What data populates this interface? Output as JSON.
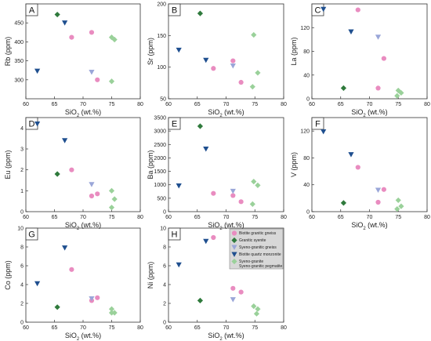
{
  "colors": {
    "biotite_granitic_gneiss": "#e98cc0",
    "granitic_syenite": "#2f7a3c",
    "syeno_granitic_gneiss": "#9aa6d8",
    "biotite_quartz_monzonite": "#1f4f8f",
    "syeno_granite_pegmatite": "#9ad19a"
  },
  "legend": {
    "entries": [
      {
        "key": "biotite_granitic_gneiss",
        "label": "Biotite granitic gneiss",
        "shape": "circle"
      },
      {
        "key": "granitic_syenite",
        "label": "Granitic syenite",
        "shape": "diamond"
      },
      {
        "key": "syeno_granitic_gneiss",
        "label": "Syeno-granitic gneiss",
        "shape": "triangle-down"
      },
      {
        "key": "biotite_quartz_monzonite",
        "label": "Biotite quartz monzonite",
        "shape": "triangle-down"
      },
      {
        "key": "syeno_granite_pegmatite",
        "label": "Syeno-granite\nSyeno-granitic pegmatite",
        "shape": "diamond"
      }
    ]
  },
  "chart_data": [
    {
      "panel": "A",
      "type": "scatter",
      "xlabel": "SiO2 (wt.%)",
      "ylabel": "Rb (ppm)",
      "xlim": [
        60,
        80
      ],
      "ylim": [
        250,
        500
      ],
      "xticks": [
        60,
        65,
        70,
        75,
        80
      ],
      "yticks": [
        300,
        350,
        400,
        450
      ],
      "series": [
        {
          "key": "biotite_granitic_gneiss",
          "x": [
            68,
            71.5,
            72.5
          ],
          "y": [
            412,
            425,
            300
          ]
        },
        {
          "key": "granitic_syenite",
          "x": [
            65.5
          ],
          "y": [
            472
          ]
        },
        {
          "key": "syeno_granitic_gneiss",
          "x": [
            71.5
          ],
          "y": [
            320
          ]
        },
        {
          "key": "biotite_quartz_monzonite",
          "x": [
            62,
            66.8
          ],
          "y": [
            323,
            450
          ]
        },
        {
          "key": "syeno_granite_pegmatite",
          "x": [
            75,
            75.5,
            75
          ],
          "y": [
            412,
            406,
            296
          ]
        }
      ]
    },
    {
      "panel": "B",
      "type": "scatter",
      "xlabel": "SiO2 (wt.%)",
      "ylabel": "Sr (ppm)",
      "xlim": [
        60,
        80
      ],
      "ylim": [
        50,
        200
      ],
      "xticks": [
        60,
        65,
        70,
        75,
        80
      ],
      "yticks": [
        50,
        100,
        150,
        200
      ],
      "series": [
        {
          "key": "biotite_granitic_gneiss",
          "x": [
            67.8,
            71.2,
            72.6
          ],
          "y": [
            98,
            110,
            76
          ]
        },
        {
          "key": "granitic_syenite",
          "x": [
            65.5
          ],
          "y": [
            185
          ]
        },
        {
          "key": "syeno_granitic_gneiss",
          "x": [
            71.2
          ],
          "y": [
            102
          ]
        },
        {
          "key": "biotite_quartz_monzonite",
          "x": [
            61.8,
            66.5
          ],
          "y": [
            127,
            111
          ]
        },
        {
          "key": "syeno_granite_pegmatite",
          "x": [
            74.8,
            75.5,
            74.6
          ],
          "y": [
            151,
            91,
            69
          ]
        }
      ]
    },
    {
      "panel": "C",
      "type": "scatter",
      "xlabel": "SiO2 (wt.%)",
      "ylabel": "La (ppm)",
      "xlim": [
        60,
        80
      ],
      "ylim": [
        0,
        160
      ],
      "xticks": [
        60,
        65,
        70,
        75,
        80
      ],
      "yticks": [
        0,
        40,
        80,
        120
      ],
      "series": [
        {
          "key": "biotite_granitic_gneiss",
          "x": [
            68,
            71.5,
            72.5
          ],
          "y": [
            150,
            18,
            68
          ]
        },
        {
          "key": "granitic_syenite",
          "x": [
            65.5
          ],
          "y": [
            18
          ]
        },
        {
          "key": "syeno_granitic_gneiss",
          "x": [
            71.5
          ],
          "y": [
            104
          ]
        },
        {
          "key": "biotite_quartz_monzonite",
          "x": [
            62,
            66.8
          ],
          "y": [
            151,
            113
          ]
        },
        {
          "key": "syeno_granite_pegmatite",
          "x": [
            75,
            75.5,
            74.8
          ],
          "y": [
            14,
            10,
            5
          ]
        }
      ]
    },
    {
      "panel": "D",
      "type": "scatter",
      "xlabel": "SiO2 (wt.%)",
      "ylabel": "Eu (ppm)",
      "xlim": [
        60,
        80
      ],
      "ylim": [
        0,
        4.5
      ],
      "xticks": [
        60,
        65,
        70,
        75,
        80
      ],
      "yticks": [
        0,
        1,
        2,
        3,
        4
      ],
      "series": [
        {
          "key": "biotite_granitic_gneiss",
          "x": [
            68,
            71.5,
            72.5
          ],
          "y": [
            2.0,
            0.75,
            0.85
          ]
        },
        {
          "key": "granitic_syenite",
          "x": [
            65.5
          ],
          "y": [
            1.8
          ]
        },
        {
          "key": "syeno_granitic_gneiss",
          "x": [
            71.5
          ],
          "y": [
            1.3
          ]
        },
        {
          "key": "biotite_quartz_monzonite",
          "x": [
            62,
            66.8
          ],
          "y": [
            4.2,
            3.4
          ]
        },
        {
          "key": "syeno_granite_pegmatite",
          "x": [
            75,
            75.5,
            75
          ],
          "y": [
            1.0,
            0.6,
            0.2
          ]
        }
      ]
    },
    {
      "panel": "E",
      "type": "scatter",
      "xlabel": "SiO2 (wt.%)",
      "ylabel": "Ba (ppm)",
      "xlim": [
        60,
        80
      ],
      "ylim": [
        0,
        3500
      ],
      "xticks": [
        60,
        65,
        70,
        75,
        80
      ],
      "yticks": [
        0,
        500,
        1000,
        1500,
        2000,
        2500,
        3000,
        3500
      ],
      "series": [
        {
          "key": "biotite_granitic_gneiss",
          "x": [
            67.8,
            71.2,
            72.6
          ],
          "y": [
            680,
            600,
            370
          ]
        },
        {
          "key": "granitic_syenite",
          "x": [
            65.5
          ],
          "y": [
            3180
          ]
        },
        {
          "key": "syeno_granitic_gneiss",
          "x": [
            71.2
          ],
          "y": [
            760
          ]
        },
        {
          "key": "biotite_quartz_monzonite",
          "x": [
            61.8,
            66.5
          ],
          "y": [
            960,
            2330
          ]
        },
        {
          "key": "syeno_granite_pegmatite",
          "x": [
            74.8,
            75.5,
            74.6
          ],
          "y": [
            1120,
            980,
            280
          ]
        }
      ]
    },
    {
      "panel": "F",
      "type": "scatter",
      "xlabel": "SiO2 (wt.%)",
      "ylabel": "V (ppm)",
      "xlim": [
        60,
        80
      ],
      "ylim": [
        0,
        140
      ],
      "xticks": [
        60,
        65,
        70,
        75,
        80
      ],
      "yticks": [
        0,
        40,
        80,
        120
      ],
      "series": [
        {
          "key": "biotite_granitic_gneiss",
          "x": [
            68,
            71.5,
            72.5
          ],
          "y": [
            66,
            14,
            33
          ]
        },
        {
          "key": "granitic_syenite",
          "x": [
            65.5
          ],
          "y": [
            13
          ]
        },
        {
          "key": "syeno_granitic_gneiss",
          "x": [
            71.5
          ],
          "y": [
            32
          ]
        },
        {
          "key": "biotite_quartz_monzonite",
          "x": [
            62,
            66.8
          ],
          "y": [
            119,
            85
          ]
        },
        {
          "key": "syeno_granite_pegmatite",
          "x": [
            75,
            75.5,
            74.8
          ],
          "y": [
            17,
            8,
            4
          ]
        }
      ]
    },
    {
      "panel": "G",
      "type": "scatter",
      "xlabel": "SiO2 (wt.%)",
      "ylabel": "Co (ppm)",
      "xlim": [
        60,
        80
      ],
      "ylim": [
        0,
        10
      ],
      "xticks": [
        60,
        65,
        70,
        75,
        80
      ],
      "yticks": [
        0,
        2,
        4,
        6,
        8,
        10
      ],
      "series": [
        {
          "key": "biotite_granitic_gneiss",
          "x": [
            68,
            71.5,
            72.5
          ],
          "y": [
            5.6,
            2.3,
            2.6
          ]
        },
        {
          "key": "granitic_syenite",
          "x": [
            65.5
          ],
          "y": [
            1.6
          ]
        },
        {
          "key": "syeno_granitic_gneiss",
          "x": [
            71.5
          ],
          "y": [
            2.5
          ]
        },
        {
          "key": "biotite_quartz_monzonite",
          "x": [
            62,
            66.8
          ],
          "y": [
            4.1,
            7.9
          ]
        },
        {
          "key": "syeno_granite_pegmatite",
          "x": [
            75,
            75.5,
            75
          ],
          "y": [
            1.4,
            1.0,
            1.0
          ]
        }
      ]
    },
    {
      "panel": "H",
      "type": "scatter",
      "xlabel": "SiO2 (wt.%)",
      "ylabel": "Ni (ppm)",
      "xlim": [
        60,
        80
      ],
      "ylim": [
        0,
        10
      ],
      "xticks": [
        60,
        65,
        70,
        75,
        80
      ],
      "yticks": [
        0,
        2,
        4,
        6,
        8,
        10
      ],
      "series": [
        {
          "key": "biotite_granitic_gneiss",
          "x": [
            67.8,
            71.2,
            72.6
          ],
          "y": [
            9.0,
            3.6,
            3.2
          ]
        },
        {
          "key": "granitic_syenite",
          "x": [
            65.5
          ],
          "y": [
            2.3
          ]
        },
        {
          "key": "syeno_granitic_gneiss",
          "x": [
            71.2
          ],
          "y": [
            2.4
          ]
        },
        {
          "key": "biotite_quartz_monzonite",
          "x": [
            61.8,
            66.5
          ],
          "y": [
            6.1,
            8.6
          ]
        },
        {
          "key": "syeno_granite_pegmatite",
          "x": [
            74.8,
            75.5,
            75.3
          ],
          "y": [
            1.7,
            1.4,
            0.9
          ]
        }
      ]
    }
  ]
}
